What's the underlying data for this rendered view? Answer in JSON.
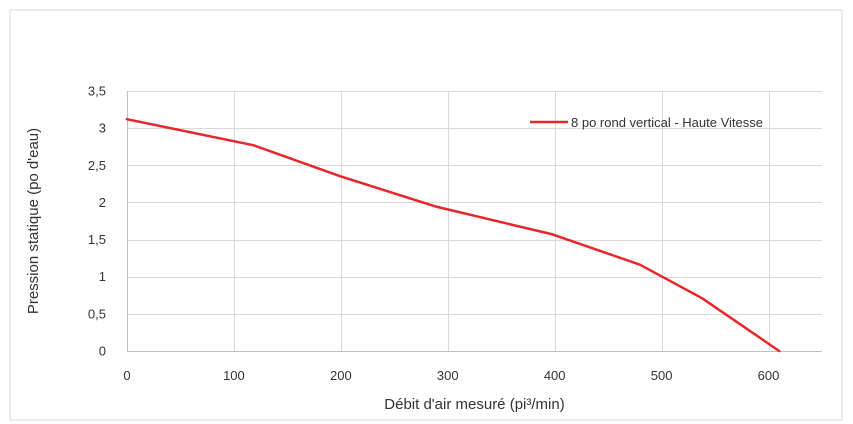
{
  "chart_data": {
    "type": "line",
    "title": "",
    "xlabel": "Débit d'air mesuré (pi³/min)",
    "ylabel": "Pression statique (po d'eau)",
    "xlim": [
      0,
      650
    ],
    "ylim": [
      0,
      3.5
    ],
    "x_ticks": [
      0,
      100,
      200,
      300,
      400,
      500,
      600
    ],
    "x_tick_labels": [
      "0",
      "100",
      "200",
      "300",
      "400",
      "500",
      "600"
    ],
    "y_ticks": [
      0,
      0.5,
      1,
      1.5,
      2,
      2.5,
      3,
      3.5
    ],
    "y_tick_labels": [
      "0",
      "0,5",
      "1",
      "1,5",
      "2",
      "2,5",
      "3",
      "3,5"
    ],
    "grid": true,
    "legend_position": "top-right",
    "series": [
      {
        "name": "8 po rond vertical - Haute Vitesse",
        "color": "#e8262a",
        "x": [
          0,
          118,
          200,
          290,
          398,
          480,
          538,
          610
        ],
        "y": [
          3.12,
          2.77,
          2.35,
          1.94,
          1.57,
          1.16,
          0.71,
          0.0
        ]
      }
    ]
  },
  "colors": {
    "grid": "#d9d9d9",
    "axis": "#bfbfbf",
    "frame": "#d9d9d9"
  }
}
